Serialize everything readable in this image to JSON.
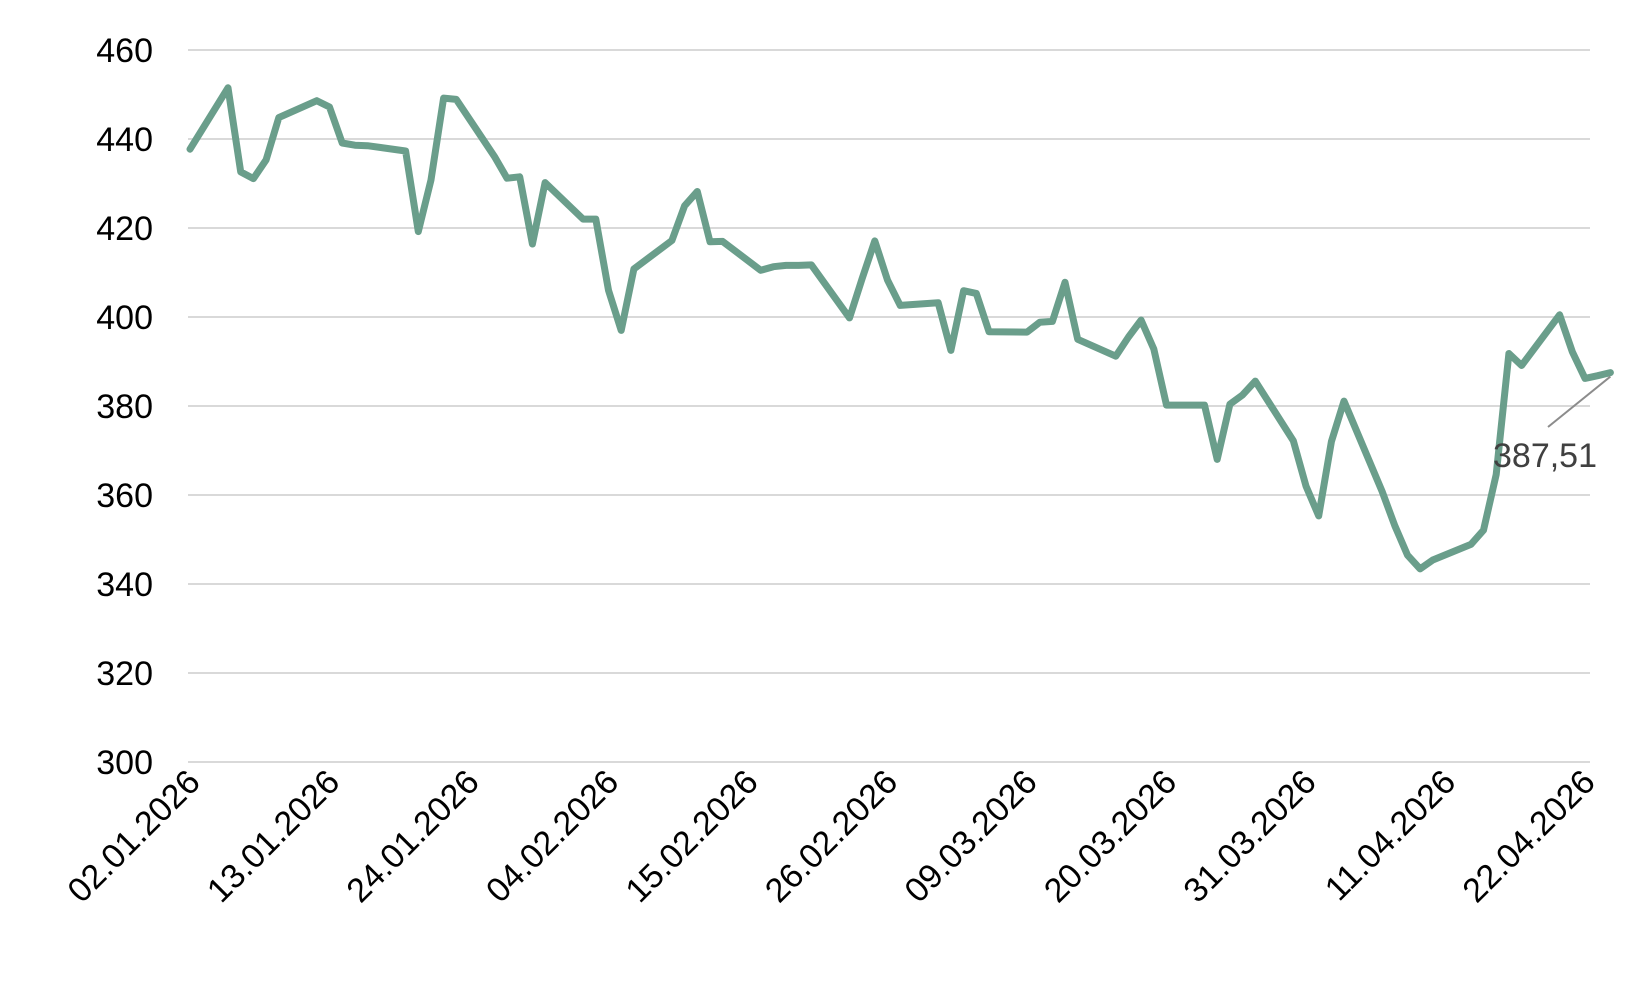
{
  "chart_data": {
    "type": "line",
    "title": "",
    "xlabel": "",
    "ylabel": "",
    "ylim": [
      300,
      460
    ],
    "yticks": [
      300,
      320,
      340,
      360,
      380,
      400,
      420,
      440,
      460
    ],
    "ytick_labels": [
      "300",
      "320",
      "340",
      "360",
      "380",
      "400",
      "420",
      "440",
      "460"
    ],
    "x_tick_labels": [
      "02.01.2026",
      "13.01.2026",
      "24.01.2026",
      "04.02.2026",
      "15.02.2026",
      "26.02.2026",
      "09.03.2026",
      "20.03.2026",
      "31.03.2026",
      "11.04.2026",
      "22.04.2026"
    ],
    "grid": true,
    "legend": "none",
    "series_color": "#6a9e8b",
    "end_label": "387,51",
    "series": [
      {
        "x": [
          "2026-01-02",
          "2026-01-05",
          "2026-01-06",
          "2026-01-07",
          "2026-01-08",
          "2026-01-09",
          "2026-01-12",
          "2026-01-13",
          "2026-01-14",
          "2026-01-15",
          "2026-01-16",
          "2026-01-19",
          "2026-01-20",
          "2026-01-21",
          "2026-01-22",
          "2026-01-23",
          "2026-01-26",
          "2026-01-27",
          "2026-01-28",
          "2026-01-29",
          "2026-01-30",
          "2026-02-02",
          "2026-02-03",
          "2026-02-04",
          "2026-02-05",
          "2026-02-06",
          "2026-02-09",
          "2026-02-10",
          "2026-02-11",
          "2026-02-12",
          "2026-02-13",
          "2026-02-16",
          "2026-02-17",
          "2026-02-18",
          "2026-02-19",
          "2026-02-20",
          "2026-02-23",
          "2026-02-24",
          "2026-02-25",
          "2026-02-26",
          "2026-02-27",
          "2026-03-02",
          "2026-03-03",
          "2026-03-04",
          "2026-03-05",
          "2026-03-06",
          "2026-03-09",
          "2026-03-10",
          "2026-03-11",
          "2026-03-12",
          "2026-03-13",
          "2026-03-16",
          "2026-03-17",
          "2026-03-18",
          "2026-03-19",
          "2026-03-20",
          "2026-03-23",
          "2026-03-24",
          "2026-03-25",
          "2026-03-26",
          "2026-03-27",
          "2026-03-30",
          "2026-03-31",
          "2026-04-01",
          "2026-04-02",
          "2026-04-03",
          "2026-04-06",
          "2026-04-07",
          "2026-04-08",
          "2026-04-09",
          "2026-04-10",
          "2026-04-13",
          "2026-04-14",
          "2026-04-15",
          "2026-04-16",
          "2026-04-17",
          "2026-04-20",
          "2026-04-21",
          "2026-04-22",
          "2026-04-23",
          "2026-04-24"
        ],
        "y": [
          437.7,
          451.5,
          432.6,
          431.1,
          435.3,
          444.8,
          448.6,
          447.2,
          439.1,
          438.6,
          438.5,
          437.3,
          419.2,
          430.8,
          449.2,
          448.9,
          436.1,
          431.2,
          431.5,
          416.4,
          430.2,
          422.0,
          422.0,
          406.0,
          397.0,
          410.8,
          417.2,
          425.0,
          428.2,
          416.9,
          417.0,
          410.5,
          411.3,
          411.6,
          411.6,
          411.7,
          399.8,
          408.6,
          417.1,
          408.3,
          402.6,
          403.2,
          392.5,
          405.9,
          405.3,
          396.7,
          396.6,
          398.8,
          399.0,
          407.8,
          395.0,
          391.2,
          395.5,
          399.3,
          392.8,
          380.2,
          380.2,
          368.0,
          380.4,
          382.5,
          385.6,
          372.2,
          362.0,
          355.3,
          372.0,
          381.1,
          360.8,
          353.1,
          346.5,
          343.4,
          345.4,
          348.9,
          352.1,
          364.6,
          391.8,
          389.1,
          400.5,
          392.2,
          386.2,
          386.8,
          387.51
        ]
      }
    ]
  }
}
